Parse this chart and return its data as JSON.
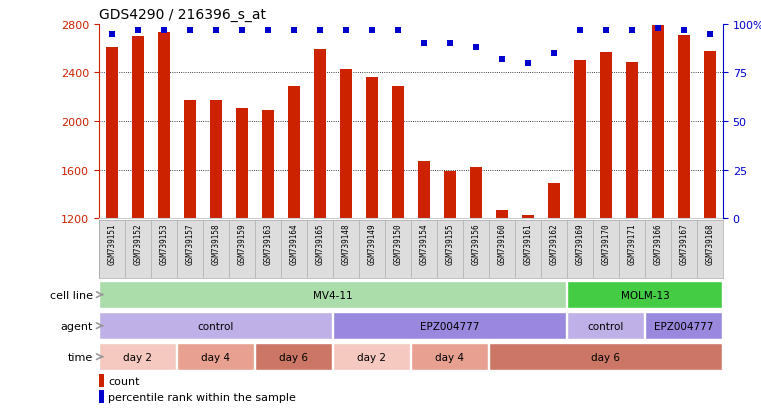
{
  "title": "GDS4290 / 216396_s_at",
  "samples": [
    "GSM739151",
    "GSM739152",
    "GSM739153",
    "GSM739157",
    "GSM739158",
    "GSM739159",
    "GSM739163",
    "GSM739164",
    "GSM739165",
    "GSM739148",
    "GSM739149",
    "GSM739150",
    "GSM739154",
    "GSM739155",
    "GSM739156",
    "GSM739160",
    "GSM739161",
    "GSM739162",
    "GSM739169",
    "GSM739170",
    "GSM739171",
    "GSM739166",
    "GSM739167",
    "GSM739168"
  ],
  "counts": [
    2610,
    2700,
    2730,
    2170,
    2170,
    2110,
    2095,
    2290,
    2590,
    2430,
    2365,
    2290,
    1670,
    1590,
    1620,
    1270,
    1230,
    1490,
    2500,
    2570,
    2490,
    2790,
    2710,
    2580
  ],
  "percentile": [
    95,
    97,
    97,
    97,
    97,
    97,
    97,
    97,
    97,
    97,
    97,
    97,
    90,
    90,
    88,
    82,
    80,
    85,
    97,
    97,
    97,
    98,
    97,
    95
  ],
  "bar_color": "#cc2200",
  "dot_color": "#0000cc",
  "ylim_left": [
    1200,
    2800
  ],
  "ylim_right": [
    0,
    100
  ],
  "yticks_left": [
    1200,
    1600,
    2000,
    2400,
    2800
  ],
  "yticks_right": [
    0,
    25,
    50,
    75,
    100
  ],
  "grid_values": [
    1600,
    2000,
    2400
  ],
  "cell_line_color_mv411": "#aaddaa",
  "cell_line_color_molm13": "#44cc44",
  "agent_color_control": "#c0b0e8",
  "agent_color_epz": "#9988dd",
  "time_color_day2": "#f5c8c0",
  "time_color_day4": "#e8a090",
  "time_color_day6": "#cc7766",
  "arrow_color": "#999999",
  "bg_color": "#ffffff",
  "tick_color_left": "#cc2200",
  "tick_color_right": "#0000cc",
  "label_fontsize": 8,
  "title_fontsize": 10,
  "xticklabel_bg": "#dddddd"
}
